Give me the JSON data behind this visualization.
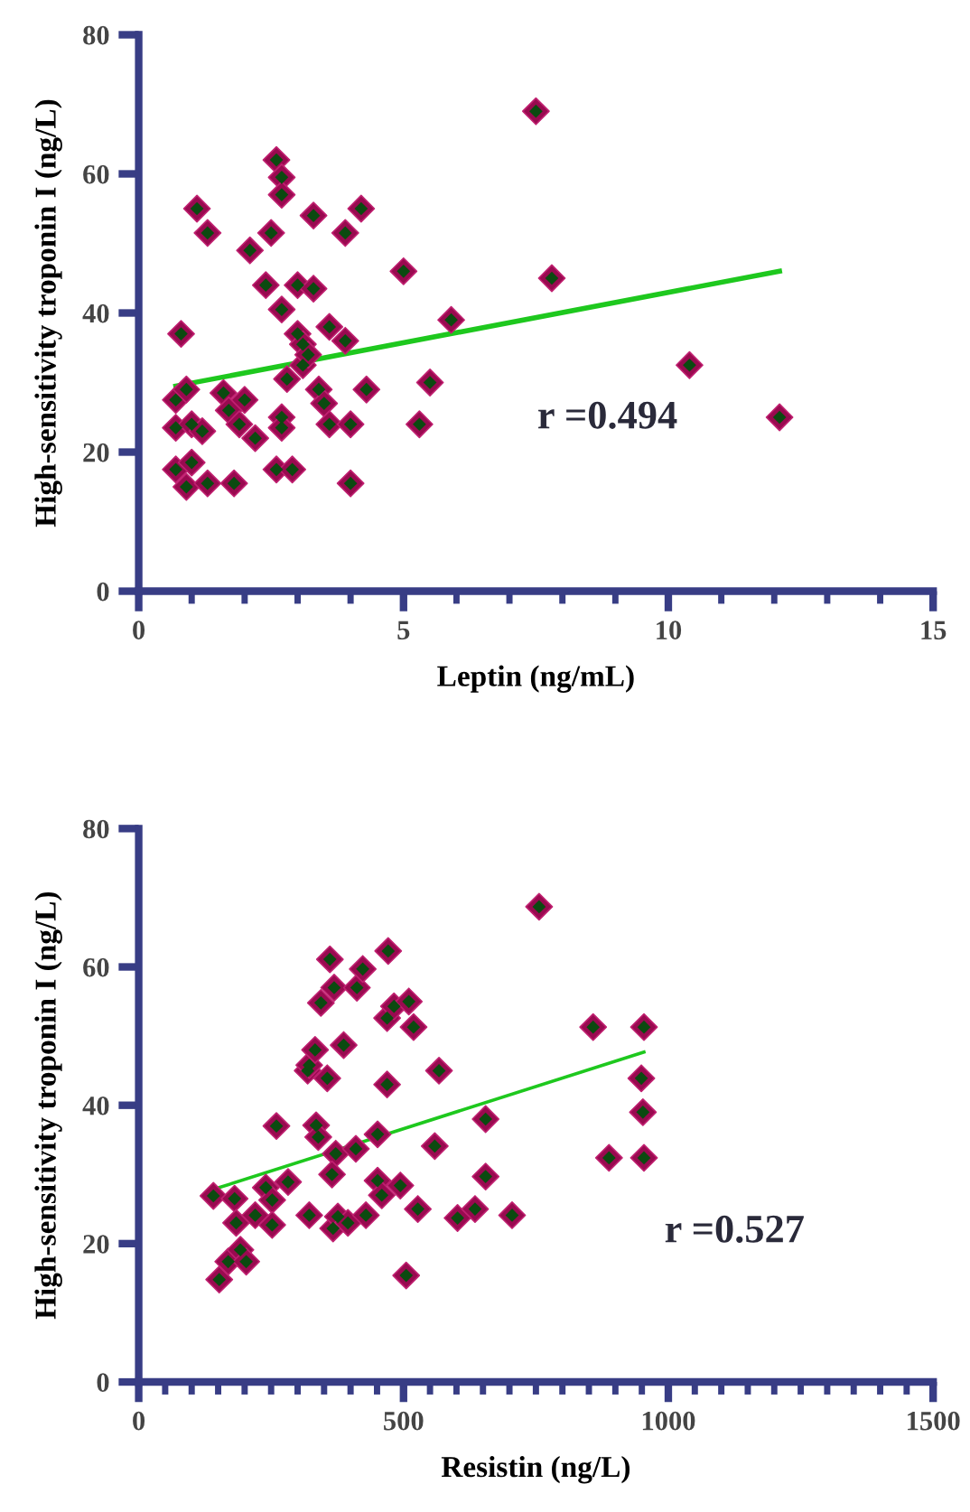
{
  "chart_data": [
    {
      "type": "scatter",
      "xlabel": "Leptin (ng/mL)",
      "ylabel": "High-sensitivity troponin I (ng/L)",
      "xlim": [
        0,
        15
      ],
      "ylim": [
        0,
        80
      ],
      "xticks": [
        0,
        5,
        10,
        15
      ],
      "yticks": [
        0,
        20,
        40,
        60,
        80
      ],
      "grid": false,
      "legend": false,
      "annotations": [
        "r =0.494"
      ],
      "series": [
        {
          "marker": "diamond",
          "color": "#990a50",
          "x": [
            0.7,
            0.7,
            0.7,
            0.8,
            0.9,
            0.9,
            1.0,
            1.0,
            1.1,
            1.2,
            1.3,
            1.3,
            1.6,
            1.7,
            1.8,
            1.9,
            2.0,
            2.1,
            2.2,
            2.4,
            2.5,
            2.6,
            2.6,
            2.7,
            2.7,
            2.7,
            2.7,
            2.7,
            2.8,
            2.9,
            3.0,
            3.0,
            3.1,
            3.1,
            3.2,
            3.3,
            3.3,
            3.4,
            3.5,
            3.6,
            3.6,
            3.9,
            3.9,
            4.0,
            4.0,
            4.2,
            4.3,
            5.0,
            5.3,
            5.5,
            5.9,
            7.5,
            7.8,
            10.4,
            12.1
          ],
          "values": [
            27.5,
            23.5,
            17.5,
            37,
            29,
            15,
            18.5,
            24,
            55,
            23,
            51.5,
            15.5,
            28.5,
            26,
            15.5,
            24,
            27.5,
            49,
            22,
            44,
            51.5,
            62,
            17.5,
            59.5,
            57,
            40.5,
            25,
            23.5,
            30.5,
            17.5,
            44,
            37,
            35.5,
            32.5,
            34,
            43.5,
            54,
            29,
            27,
            24,
            38,
            36,
            51.5,
            24,
            15.5,
            55,
            29,
            46,
            24,
            30,
            39,
            69,
            45,
            32.5,
            25
          ]
        },
        {
          "type": "line",
          "marker": "none",
          "color": "#1ec81e",
          "line_style": "solid",
          "x": [
            0.7,
            12.1
          ],
          "values": [
            29.5,
            46
          ]
        }
      ]
    },
    {
      "type": "scatter",
      "xlabel": "Resistin (ng/L)",
      "ylabel": "High-sensitivity troponin I (ng/L)",
      "xlim": [
        0,
        1500
      ],
      "ylim": [
        0,
        80
      ],
      "xticks": [
        0,
        500,
        1000,
        1500
      ],
      "yticks": [
        0,
        20,
        40,
        60,
        80
      ],
      "grid": false,
      "legend": false,
      "annotations": [
        "r =0.527"
      ],
      "series": [
        {
          "marker": "diamond",
          "color": "#990a50",
          "x": [
            141,
            181,
            184,
            220,
            240,
            252,
            252,
            282,
            260,
            322,
            335,
            339,
            372,
            410,
            365,
            367,
            376,
            395,
            429,
            451,
            451,
            459,
            494,
            505,
            527,
            559,
            602,
            635,
            655,
            655,
            705,
            152,
            169,
            192,
            203,
            319,
            322,
            333,
            356,
            387,
            344,
            369,
            361,
            412,
            423,
            471,
            469,
            482,
            510,
            519,
            469,
            567,
            756,
            858,
            954,
            949,
            952,
            888,
            954
          ],
          "values": [
            26.9,
            26.5,
            23,
            24.1,
            28.1,
            26.3,
            22.7,
            28.9,
            37,
            24.1,
            37.1,
            35.4,
            33,
            33.7,
            30,
            22.2,
            23.9,
            23,
            24.1,
            35.8,
            29.1,
            27,
            28.4,
            15.4,
            25,
            34.1,
            23.7,
            25,
            38,
            29.7,
            24.1,
            14.8,
            17.4,
            19.1,
            17.4,
            45,
            45.8,
            48,
            43.9,
            48.7,
            54.8,
            57,
            61.1,
            57,
            59.7,
            62.3,
            52.6,
            54.3,
            55,
            51.3,
            43,
            45,
            68.7,
            51.3,
            51.3,
            43.9,
            39,
            32.4,
            32.4
          ]
        },
        {
          "type": "line",
          "marker": "none",
          "color": "#1ec81e",
          "line_style": "solid",
          "x": [
            152,
            954
          ],
          "values": [
            28.1,
            47.7
          ]
        }
      ]
    }
  ]
}
